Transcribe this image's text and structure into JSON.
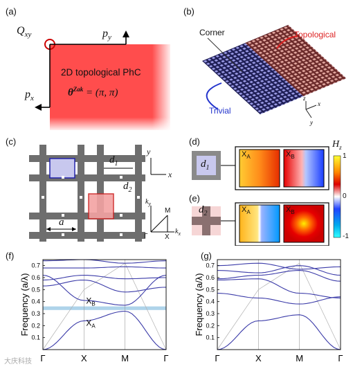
{
  "panels": {
    "a": {
      "label": "(a)",
      "q": "Q",
      "q_sub": "xy",
      "py": "p",
      "py_sub": "y",
      "px": "p",
      "px_sub": "x",
      "text1": "2D topological PhC",
      "theta": "θ",
      "theta_sup": "Zak",
      "theta_val": "= (π, π)"
    },
    "b": {
      "label": "(b)",
      "corner": "Corner",
      "topological": "Topological",
      "trivial": "Trivial",
      "ax_z": "z",
      "ax_x": "x",
      "ax_y": "y"
    },
    "c": {
      "label": "(c)",
      "d1": "d",
      "d1_sub": "1",
      "d2": "d",
      "d2_sub": "2",
      "a": "a",
      "ax_y": "y",
      "ax_x": "x",
      "bz_ky": "k",
      "bz_ky_sub": "y",
      "bz_kx": "k",
      "bz_kx_sub": "x",
      "bz_m": "M",
      "bz_gamma": "Γ",
      "bz_x": "X"
    },
    "d": {
      "label": "(d)",
      "d1": "d",
      "d1_sub": "1",
      "xa": "X",
      "xa_sub": "A",
      "xb": "X",
      "xb_sub": "B"
    },
    "e": {
      "label": "(e)",
      "d2": "d",
      "d2_sub": "2",
      "xa": "X",
      "xa_sub": "A",
      "xb": "X",
      "xb_sub": "B"
    },
    "colorbar": {
      "title": "H",
      "title_sub": "z",
      "ticks": [
        "1",
        "0",
        "-1"
      ],
      "colors": [
        "#ffff33",
        "#ff8800",
        "#dd0000",
        "#ffffff",
        "#2244ff",
        "#00aaee",
        "#33ffff"
      ]
    },
    "f": {
      "label": "(f)",
      "band_xb": "X",
      "band_xb_sub": "B",
      "band_xa": "X",
      "band_xa_sub": "A"
    },
    "g": {
      "label": "(g)"
    },
    "axes": {
      "ylabel": "Frequency (a/λ)",
      "yticks": [
        "0.1",
        "0.2",
        "0.3",
        "0.4",
        "0.5",
        "0.6",
        "0.7"
      ],
      "xticks": [
        "Γ",
        "X",
        "M",
        "Γ"
      ]
    }
  },
  "watermark": "大庆科技",
  "colors": {
    "topological_red": "#ff4d4d",
    "trivial_blue": "#4444cc",
    "band_blue": "#3a3aa8",
    "gap": "#aed3ea",
    "light_line": "#b0b0b0",
    "lattice_grey": "#6e6e6e"
  },
  "chart_data": [
    {
      "type": "line",
      "title": "(f)",
      "xlabel": "",
      "ylabel": "Frequency (a/λ)",
      "x": [
        "Γ",
        "X",
        "M",
        "Γ"
      ],
      "ylim": [
        0,
        0.75
      ],
      "gap": [
        0.33,
        0.36
      ],
      "series": [
        {
          "values": [
            0.0,
            0.24,
            0.32,
            0.0
          ]
        },
        {
          "values": [
            0.62,
            0.41,
            0.37,
            0.62
          ]
        },
        {
          "values": [
            0.53,
            0.58,
            0.48,
            0.52
          ]
        },
        {
          "values": [
            0.58,
            0.62,
            0.59,
            0.6
          ]
        },
        {
          "values": [
            0.68,
            0.68,
            0.69,
            0.68
          ]
        },
        {
          "values": [
            0.74,
            0.75,
            0.72,
            0.74
          ]
        }
      ]
    },
    {
      "type": "line",
      "title": "(g)",
      "xlabel": "",
      "ylabel": "",
      "x": [
        "Γ",
        "X",
        "M",
        "Γ"
      ],
      "ylim": [
        0,
        0.75
      ],
      "series": [
        {
          "values": [
            0.0,
            0.24,
            0.29,
            0.0
          ]
        },
        {
          "values": [
            0.47,
            0.43,
            0.38,
            0.44
          ]
        },
        {
          "values": [
            0.58,
            0.59,
            0.47,
            0.43
          ]
        },
        {
          "values": [
            0.59,
            0.62,
            0.66,
            0.57
          ]
        },
        {
          "values": [
            0.66,
            0.64,
            0.7,
            0.62
          ]
        },
        {
          "values": [
            0.7,
            0.72,
            0.67,
            0.69
          ]
        }
      ]
    }
  ]
}
